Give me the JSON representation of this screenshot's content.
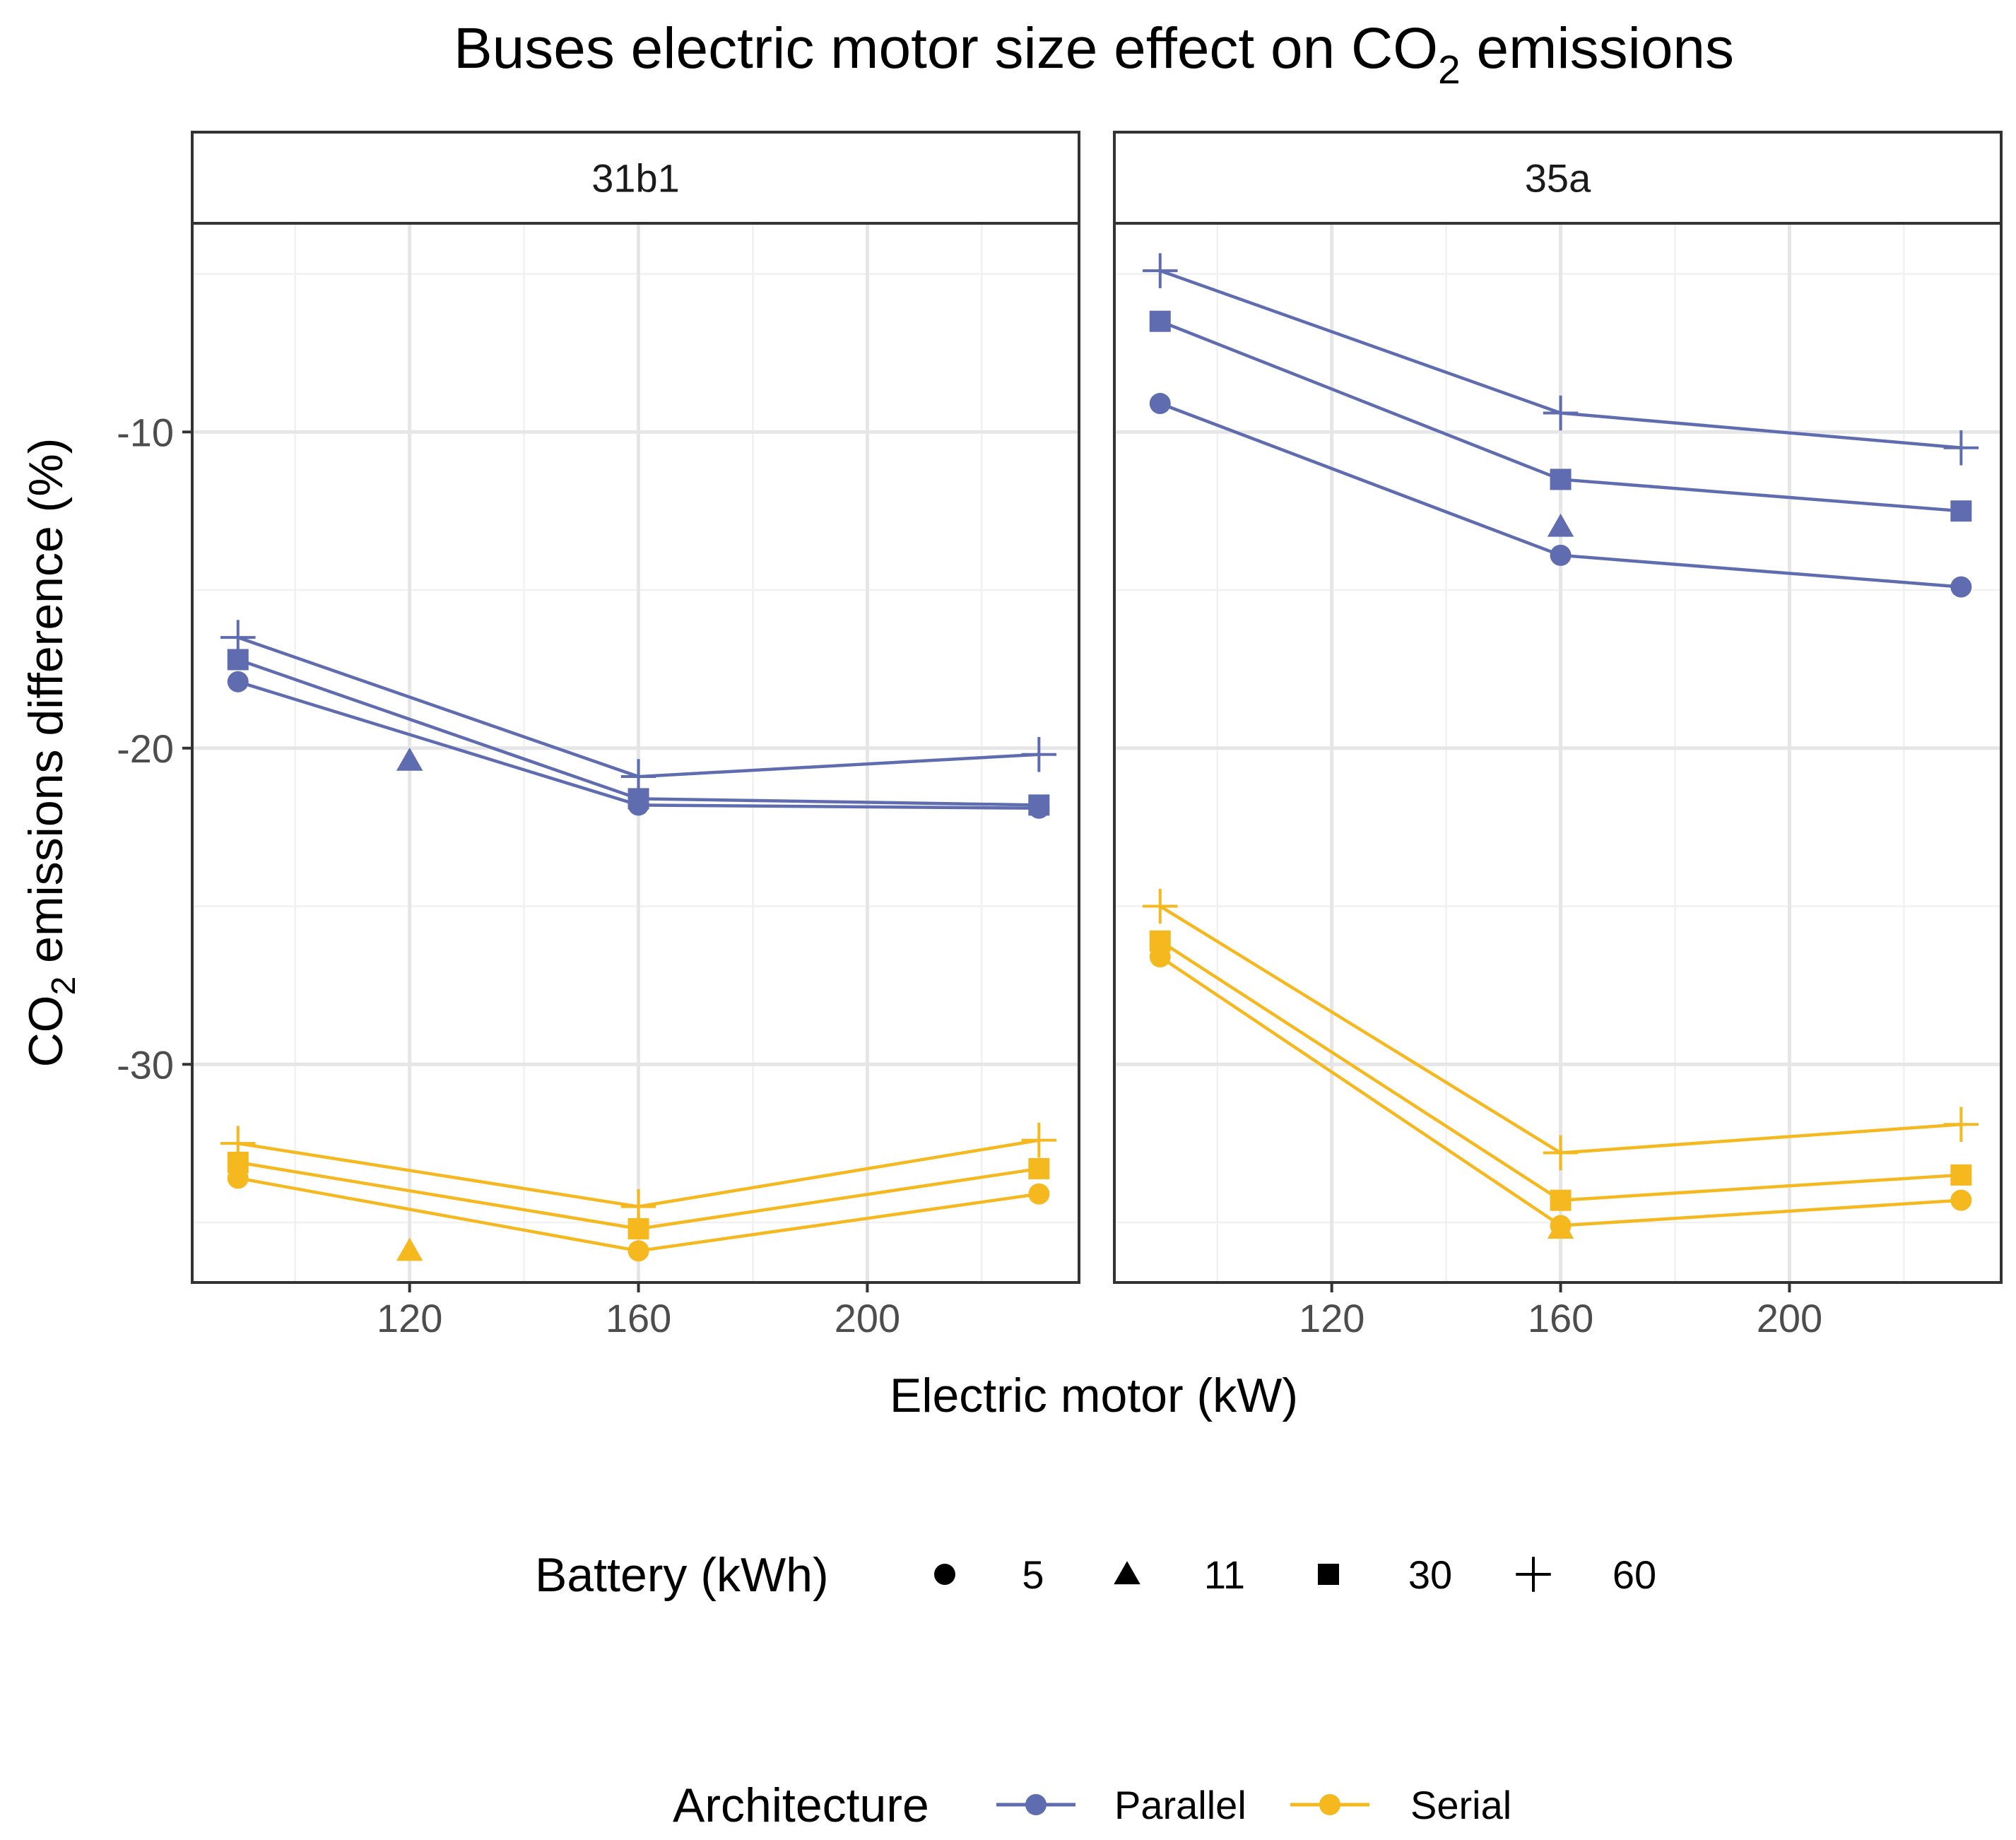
{
  "chart_data": {
    "type": "line",
    "title_main": "Buses electric motor size effect on CO",
    "title_sub": "2",
    "title_tail": " emissions",
    "xlabel": "Electric motor (kW)",
    "ylabel_main": "CO",
    "ylabel_sub": "2",
    "ylabel_tail": " emissions difference (%)",
    "xlim": [
      82,
      237
    ],
    "ylim": [
      -36.9,
      -3.4
    ],
    "x_ticks": [
      120,
      160,
      200
    ],
    "x_tick_labels": [
      "120",
      "160",
      "200"
    ],
    "y_ticks": [
      -10,
      -20,
      -30
    ],
    "y_tick_labels": [
      "-10",
      "-20",
      "-30"
    ],
    "colors": {
      "Parallel": "#5f6db0",
      "Serial": "#f5b81e"
    },
    "legend_shape": {
      "title": "Battery (kWh)",
      "entries": [
        {
          "label": "5",
          "shape": "circle"
        },
        {
          "label": "11",
          "shape": "triangle"
        },
        {
          "label": "30",
          "shape": "square"
        },
        {
          "label": "60",
          "shape": "plus"
        }
      ]
    },
    "legend_color": {
      "title": "Architecture",
      "entries": [
        {
          "label": "Parallel",
          "color": "#5f6db0"
        },
        {
          "label": "Serial",
          "color": "#f5b81e"
        }
      ]
    },
    "panels": [
      {
        "label": "31b1",
        "series": [
          {
            "architecture": "Parallel",
            "battery": "5",
            "shape": "circle",
            "x": [
              90,
              160,
              230
            ],
            "y": [
              -17.9,
              -21.8,
              -21.9
            ]
          },
          {
            "architecture": "Parallel",
            "battery": "30",
            "shape": "square",
            "x": [
              90,
              160,
              230
            ],
            "y": [
              -17.2,
              -21.6,
              -21.8
            ]
          },
          {
            "architecture": "Parallel",
            "battery": "60",
            "shape": "plus",
            "x": [
              90,
              160,
              230
            ],
            "y": [
              -16.5,
              -20.9,
              -20.2
            ]
          },
          {
            "architecture": "Parallel",
            "battery": "11",
            "shape": "triangle",
            "x": [
              120
            ],
            "y": [
              -20.4
            ]
          },
          {
            "architecture": "Serial",
            "battery": "5",
            "shape": "circle",
            "x": [
              90,
              160,
              230
            ],
            "y": [
              -33.6,
              -35.9,
              -34.1
            ]
          },
          {
            "architecture": "Serial",
            "battery": "30",
            "shape": "square",
            "x": [
              90,
              160,
              230
            ],
            "y": [
              -33.1,
              -35.2,
              -33.3
            ]
          },
          {
            "architecture": "Serial",
            "battery": "60",
            "shape": "plus",
            "x": [
              90,
              160,
              230
            ],
            "y": [
              -32.5,
              -34.5,
              -32.4
            ]
          },
          {
            "architecture": "Serial",
            "battery": "11",
            "shape": "triangle",
            "x": [
              120
            ],
            "y": [
              -35.9
            ]
          }
        ]
      },
      {
        "label": "35a",
        "series": [
          {
            "architecture": "Parallel",
            "battery": "5",
            "shape": "circle",
            "x": [
              90,
              160,
              230
            ],
            "y": [
              -9.1,
              -13.9,
              -14.9
            ]
          },
          {
            "architecture": "Parallel",
            "battery": "30",
            "shape": "square",
            "x": [
              90,
              160,
              230
            ],
            "y": [
              -6.5,
              -11.5,
              -12.5
            ]
          },
          {
            "architecture": "Parallel",
            "battery": "60",
            "shape": "plus",
            "x": [
              90,
              160,
              230
            ],
            "y": [
              -4.9,
              -9.4,
              -10.5
            ]
          },
          {
            "architecture": "Parallel",
            "battery": "11",
            "shape": "triangle",
            "x": [
              160
            ],
            "y": [
              -13.0
            ]
          },
          {
            "architecture": "Serial",
            "battery": "5",
            "shape": "circle",
            "x": [
              90,
              160,
              230
            ],
            "y": [
              -26.6,
              -35.1,
              -34.3
            ]
          },
          {
            "architecture": "Serial",
            "battery": "30",
            "shape": "square",
            "x": [
              90,
              160,
              230
            ],
            "y": [
              -26.1,
              -34.3,
              -33.5
            ]
          },
          {
            "architecture": "Serial",
            "battery": "60",
            "shape": "plus",
            "x": [
              90,
              160,
              230
            ],
            "y": [
              -25.0,
              -32.8,
              -31.9
            ]
          },
          {
            "architecture": "Serial",
            "battery": "11",
            "shape": "triangle",
            "x": [
              160
            ],
            "y": [
              -35.2
            ]
          }
        ]
      }
    ]
  }
}
